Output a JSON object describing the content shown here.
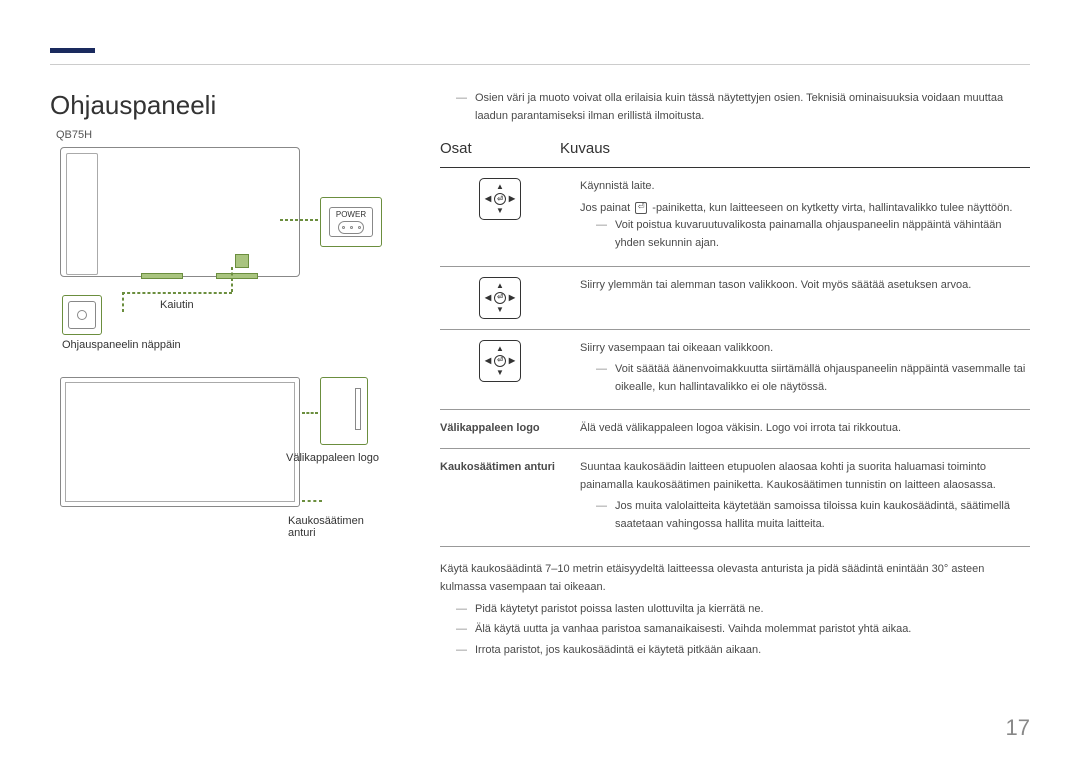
{
  "title": "Ohjauspaneeli",
  "model": "QB75H",
  "labels": {
    "power": "POWER",
    "speaker": "Kaiutin",
    "controller": "Ohjauspaneelin näppäin",
    "spacer_logo": "Välikappaleen logo",
    "remote_sensor": "Kaukosäätimen anturi"
  },
  "top_note": "Osien väri ja muoto voivat olla erilaisia kuin tässä näytettyjen osien. Teknisiä ominaisuuksia voidaan muuttaa laadun parantamiseksi ilman erillistä ilmoitusta.",
  "headers": {
    "parts": "Osat",
    "desc": "Kuvaus"
  },
  "sections": {
    "s1": {
      "line1": "Käynnistä laite.",
      "line2a": "Jos painat",
      "line2b": "-painiketta, kun laitteeseen on kytketty virta, hallintavalikko tulee näyttöön.",
      "note": "Voit poistua kuvaruutuvalikosta painamalla ohjauspaneelin näppäintä vähintään yhden sekunnin ajan."
    },
    "s2": {
      "text": "Siirry ylemmän tai alemman tason valikkoon. Voit myös säätää asetuksen arvoa."
    },
    "s3": {
      "text": "Siirry vasempaan tai oikeaan valikkoon.",
      "note": "Voit säätää äänenvoimakkuutta siirtämällä ohjauspaneelin näppäintä vasemmalle tai oikealle, kun hallintavalikko ei ole näytössä."
    },
    "s4": {
      "label": "Välikappaleen logo",
      "text": "Älä vedä välikappaleen logoa väkisin. Logo voi irrota tai rikkoutua."
    },
    "s5": {
      "label": "Kaukosäätimen anturi",
      "text": "Suuntaa kaukosäädin laitteen etupuolen alaosaa kohti ja suorita haluamasi toiminto painamalla kaukosäätimen painiketta. Kaukosäätimen tunnistin on laitteen alaosassa.",
      "note": "Jos muita valolaitteita käytetään samoissa tiloissa kuin kaukosäädintä, säätimellä saatetaan vahingossa hallita muita laitteita."
    }
  },
  "bottom": {
    "p1": "Käytä kaukosäädintä 7–10 metrin etäisyydeltä laitteessa olevasta anturista ja pidä säädintä enintään 30° asteen kulmassa vasempaan tai oikeaan.",
    "n1": "Pidä käytetyt paristot poissa lasten ulottuvilta ja kierrätä ne.",
    "n2": "Älä käytä uutta ja vanhaa paristoa samanaikaisesti. Vaihda molemmat paristot yhtä aikaa.",
    "n3": "Irrota paristot, jos kaukosäädintä ei käytetä pitkään aikaan."
  },
  "page": "17"
}
